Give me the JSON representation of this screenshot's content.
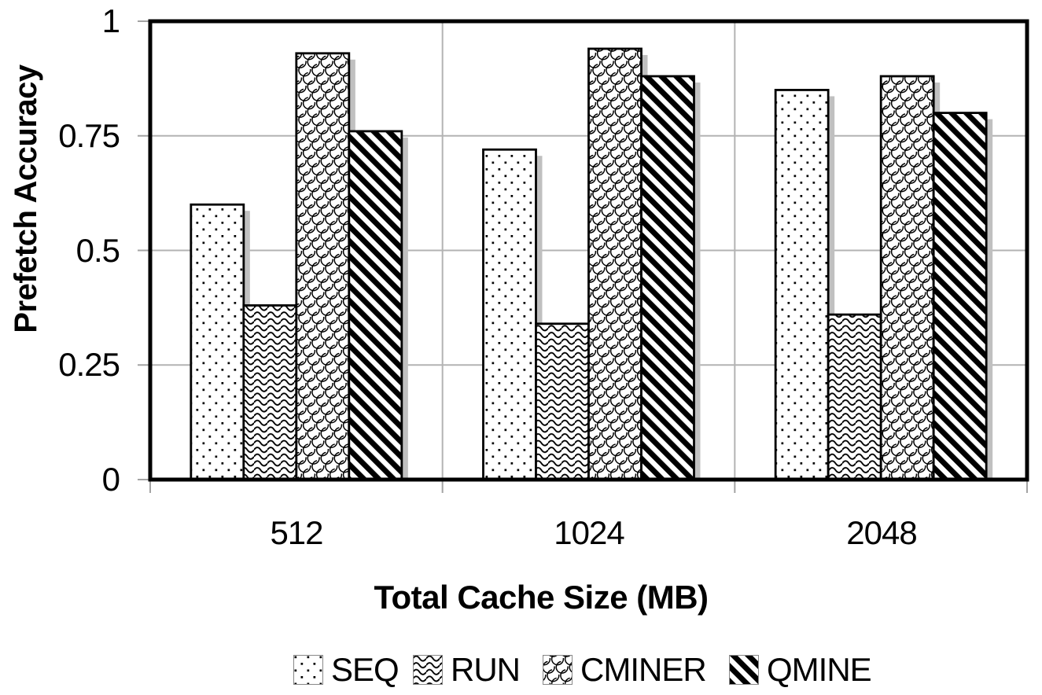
{
  "chart_data": {
    "type": "bar",
    "categories": [
      "512",
      "1024",
      "2048"
    ],
    "series": [
      {
        "name": "SEQ",
        "pattern": "dots",
        "values": [
          0.6,
          0.72,
          0.85
        ]
      },
      {
        "name": "RUN",
        "pattern": "waves",
        "values": [
          0.38,
          0.34,
          0.36
        ]
      },
      {
        "name": "CMINER",
        "pattern": "scales",
        "values": [
          0.93,
          0.94,
          0.88
        ]
      },
      {
        "name": "QMINE",
        "pattern": "diagonal",
        "values": [
          0.76,
          0.88,
          0.8
        ]
      }
    ],
    "xlabel": "Total Cache Size (MB)",
    "ylabel": "Prefetch Accuracy",
    "ylim": [
      0,
      1
    ],
    "y_ticks": [
      0,
      0.25,
      0.5,
      0.75,
      1
    ],
    "y_tick_labels": [
      "0",
      "0.25",
      "0.5",
      "0.75",
      "1"
    ],
    "grid": "horizontal gridlines + vertical category separators",
    "legend_position": "bottom",
    "colors": {
      "bar_fill": "#ffffff",
      "bar_stroke": "#000000",
      "shadow": "#c0c0c0",
      "gridline": "#b3b3b3",
      "tick": "#a3a3a3"
    }
  }
}
